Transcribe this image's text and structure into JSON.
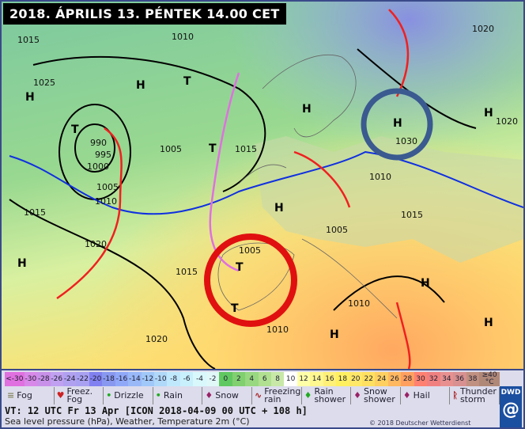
{
  "title": "2018. ÁPRILIS 13. PÉNTEK 14.00 CET",
  "map": {
    "highs": [
      "H",
      "H",
      "H",
      "H",
      "H",
      "H",
      "H",
      "H",
      "H",
      "H"
    ],
    "lows": [
      "T",
      "T",
      "T",
      "T",
      "T"
    ],
    "isobar_labels": [
      "1015",
      "1010",
      "1005",
      "1025",
      "1020",
      "1015",
      "990",
      "995",
      "1000",
      "1005",
      "1010",
      "1020",
      "1030",
      "1020",
      "1015",
      "1010",
      "1005",
      "1010",
      "1015",
      "1020",
      "1005",
      "1010",
      "1015"
    ],
    "highlight_colors": {
      "red_circle": "#e01010",
      "blue_circle": "#3a5a90"
    }
  },
  "legend": {
    "temperature_scale": [
      "<-30",
      "-30",
      "-28",
      "-26",
      "-24",
      "-22",
      "-20",
      "-18",
      "-16",
      "-14",
      "-12",
      "-10",
      "-8",
      "-6",
      "-4",
      "-2",
      "0",
      "2",
      "4",
      "6",
      "8",
      "10",
      "12",
      "14",
      "16",
      "18",
      "20",
      "22",
      "24",
      "26",
      "28",
      "30",
      "32",
      "34",
      "36",
      "38",
      "≥40 °C"
    ],
    "scale_colors": [
      "#e070e0",
      "#d888e8",
      "#c890e8",
      "#c0a0f0",
      "#b0a0f0",
      "#a8a0f0",
      "#8080f0",
      "#8898f0",
      "#90a8f8",
      "#98b8f8",
      "#a0c8f8",
      "#b0d8f8",
      "#c0e8fc",
      "#c8f0fc",
      "#d8f8fc",
      "#e0f8f8",
      "#60c860",
      "#80d070",
      "#98d880",
      "#b0e090",
      "#c8e8a8",
      "#ffffff",
      "#ffffa8",
      "#fff890",
      "#fff078",
      "#fff060",
      "#ffe868",
      "#ffe060",
      "#ffd060",
      "#ffb860",
      "#ffa060",
      "#ff8070",
      "#f08080",
      "#e89090",
      "#d89090",
      "#c09080",
      "#b08878"
    ],
    "weather": [
      "Fog",
      "Freez. Fog",
      "Drizzle",
      "Rain",
      "Snow",
      "Freezing rain",
      "Rain shower",
      "Snow shower",
      "Hail",
      "Thunder storm"
    ],
    "valid_time": "VT: 12 UTC Fr  13 Apr [ICON 2018-04-09  00 UTC + 108 h]",
    "description": "Sea level pressure (hPa), Weather, Temperature 2m (°C)",
    "copyright": "© 2018 Deutscher Wetterdienst",
    "logo": "DWD"
  }
}
